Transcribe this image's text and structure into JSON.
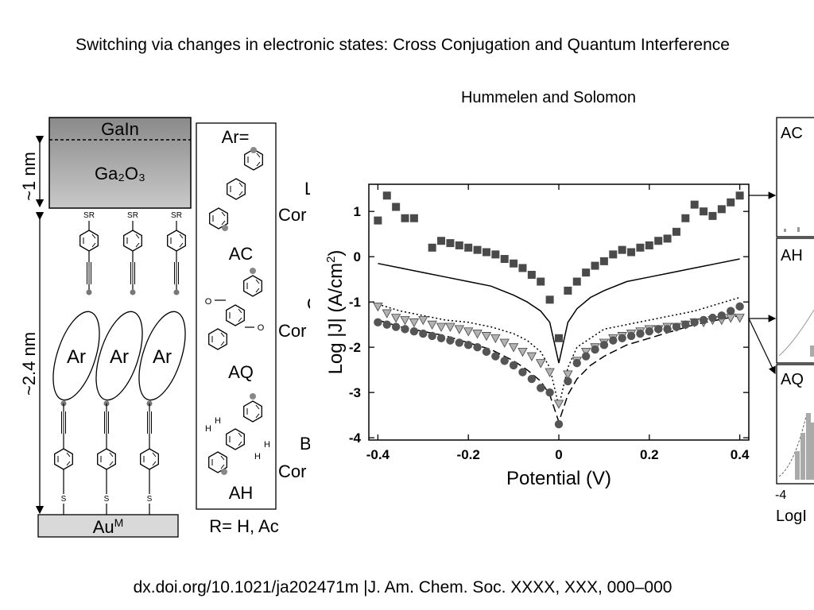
{
  "slide": {
    "title": "Switching via changes in electronic states: Cross Conjugation and Quantum Interference",
    "subtitle": "Hummelen and Solomon",
    "footer": "dx.doi.org/10.1021/ja202471m |J. Am. Chem. Soc. XXXX, XXX, 000–000"
  },
  "schematic": {
    "top_electrode": "GaIn",
    "oxide_layer": "Ga₂O₃",
    "oxide_thickness": "~1 nm",
    "sam_thickness": "~2.4 nm",
    "bottom_electrode": "Au",
    "bottom_electrode_sup": "M",
    "anchor_top": "SR",
    "anchor_bottom": "S",
    "aromatic_unit": "Ar",
    "legend_header": "Ar=",
    "molecules": [
      "AC",
      "AQ",
      "AH"
    ],
    "r_group": "R= H, Ac",
    "hydrogen": "H",
    "oxygen": "O",
    "cut_labels": [
      "L",
      "Cor",
      "C",
      "Cor",
      "B",
      "Cor"
    ]
  },
  "chart_data": {
    "type": "scatter",
    "xlabel": "Potential (V)",
    "ylabel_main": "Log |J| (A/cm",
    "ylabel_sup": "2",
    "ylabel_end": ")",
    "xlim": [
      -0.42,
      0.42
    ],
    "ylim": [
      -4.05,
      1.6
    ],
    "xticks": [
      -0.4,
      -0.2,
      0,
      0.2,
      0.4
    ],
    "xtick_labels": [
      "-0.4",
      "-0.2",
      "0",
      "0.2",
      "0.4"
    ],
    "yticks": [
      1,
      0,
      -1,
      -2,
      -3,
      -4
    ],
    "ytick_labels": [
      "1",
      "0",
      "-1",
      "-2",
      "-3",
      "-4"
    ],
    "grid": false,
    "series": [
      {
        "marker": "square",
        "color": "#4a4a4a",
        "x": [
          -0.4,
          -0.38,
          -0.36,
          -0.34,
          -0.32,
          -0.3,
          -0.28,
          -0.26,
          -0.24,
          -0.22,
          -0.2,
          -0.18,
          -0.16,
          -0.14,
          -0.12,
          -0.1,
          -0.08,
          -0.06,
          -0.04,
          -0.02,
          0,
          0.02,
          0.04,
          0.06,
          0.08,
          0.1,
          0.12,
          0.14,
          0.16,
          0.18,
          0.2,
          0.22,
          0.24,
          0.26,
          0.28,
          0.3,
          0.32,
          0.34,
          0.36,
          0.38,
          0.4
        ],
        "y": [
          0.8,
          1.35,
          1.1,
          0.85,
          0.85,
          null,
          0.2,
          0.35,
          0.3,
          0.25,
          0.2,
          0.15,
          0.1,
          0.05,
          -0.05,
          -0.15,
          -0.25,
          -0.4,
          -0.55,
          -0.95,
          -1.8,
          -0.75,
          -0.55,
          -0.35,
          -0.2,
          -0.1,
          0.05,
          0.15,
          0.1,
          0.2,
          0.25,
          0.35,
          0.4,
          0.55,
          0.85,
          1.15,
          1.0,
          0.9,
          1.05,
          1.2,
          1.35
        ]
      },
      {
        "marker": "triangle-down",
        "color": "#b3b3b3",
        "x": [
          -0.4,
          -0.38,
          -0.36,
          -0.34,
          -0.32,
          -0.3,
          -0.28,
          -0.26,
          -0.24,
          -0.22,
          -0.2,
          -0.18,
          -0.16,
          -0.14,
          -0.12,
          -0.1,
          -0.08,
          -0.06,
          -0.04,
          -0.02,
          0,
          0.02,
          0.04,
          0.06,
          0.08,
          0.1,
          0.12,
          0.14,
          0.16,
          0.18,
          0.2,
          0.22,
          0.24,
          0.26,
          0.28,
          0.3,
          0.32,
          0.34,
          0.36,
          0.38,
          0.4
        ],
        "y": [
          -1.1,
          -1.25,
          -1.35,
          -1.4,
          -1.45,
          -1.4,
          -1.5,
          -1.55,
          -1.55,
          -1.6,
          -1.65,
          -1.7,
          -1.75,
          -1.8,
          -1.9,
          -2.0,
          -2.1,
          -2.2,
          -2.35,
          -2.55,
          -3.25,
          -2.6,
          -2.3,
          -2.1,
          -2.0,
          -1.9,
          -1.8,
          -1.75,
          -1.7,
          -1.65,
          -1.6,
          -1.6,
          -1.55,
          -1.55,
          -1.5,
          -1.45,
          -1.45,
          -1.4,
          -1.4,
          -1.35,
          -1.35
        ]
      },
      {
        "marker": "circle",
        "color": "#555555",
        "x": [
          -0.4,
          -0.38,
          -0.36,
          -0.34,
          -0.32,
          -0.3,
          -0.28,
          -0.26,
          -0.24,
          -0.22,
          -0.2,
          -0.18,
          -0.16,
          -0.14,
          -0.12,
          -0.1,
          -0.08,
          -0.06,
          -0.04,
          -0.02,
          0,
          0.02,
          0.04,
          0.06,
          0.08,
          0.1,
          0.12,
          0.14,
          0.16,
          0.18,
          0.2,
          0.22,
          0.24,
          0.26,
          0.28,
          0.3,
          0.32,
          0.34,
          0.36,
          0.38,
          0.4
        ],
        "y": [
          -1.45,
          -1.5,
          -1.55,
          -1.6,
          -1.65,
          -1.7,
          -1.75,
          -1.8,
          -1.85,
          -1.9,
          -1.95,
          -2.0,
          -2.1,
          -2.2,
          -2.3,
          -2.4,
          -2.55,
          -2.7,
          -2.9,
          -3.0,
          -3.7,
          -2.75,
          -2.35,
          -2.2,
          -2.05,
          -1.95,
          -1.85,
          -1.8,
          -1.75,
          -1.7,
          -1.65,
          -1.6,
          -1.6,
          -1.55,
          -1.5,
          -1.45,
          -1.4,
          -1.35,
          -1.3,
          -1.2,
          -1.1
        ]
      }
    ],
    "curves": [
      {
        "style": "solid",
        "x": [
          -0.4,
          -0.35,
          -0.3,
          -0.25,
          -0.2,
          -0.15,
          -0.1,
          -0.07,
          -0.04,
          -0.02,
          0,
          0.02,
          0.04,
          0.07,
          0.1,
          0.15,
          0.2,
          0.25,
          0.3,
          0.35,
          0.4
        ],
        "y": [
          -0.15,
          -0.25,
          -0.35,
          -0.45,
          -0.55,
          -0.65,
          -0.85,
          -1.0,
          -1.2,
          -1.45,
          -2.35,
          -1.45,
          -1.15,
          -0.9,
          -0.75,
          -0.55,
          -0.45,
          -0.35,
          -0.25,
          -0.15,
          -0.05
        ]
      },
      {
        "style": "dotted",
        "x": [
          -0.4,
          -0.35,
          -0.3,
          -0.25,
          -0.2,
          -0.15,
          -0.1,
          -0.07,
          -0.04,
          -0.02,
          0,
          0.02,
          0.04,
          0.07,
          0.1,
          0.15,
          0.2,
          0.25,
          0.3,
          0.35,
          0.4
        ],
        "y": [
          -1.05,
          -1.2,
          -1.3,
          -1.4,
          -1.45,
          -1.55,
          -1.7,
          -1.85,
          -2.1,
          -2.45,
          -3.3,
          -2.45,
          -2.0,
          -1.8,
          -1.6,
          -1.5,
          -1.4,
          -1.3,
          -1.2,
          -1.05,
          -0.9
        ]
      },
      {
        "style": "dashed",
        "x": [
          -0.4,
          -0.35,
          -0.3,
          -0.25,
          -0.2,
          -0.15,
          -0.1,
          -0.07,
          -0.04,
          -0.02,
          0,
          0.02,
          0.04,
          0.07,
          0.1,
          0.15,
          0.2,
          0.25,
          0.3,
          0.35,
          0.4
        ],
        "y": [
          -1.4,
          -1.55,
          -1.65,
          -1.75,
          -1.9,
          -2.05,
          -2.3,
          -2.5,
          -2.75,
          -3.05,
          -3.65,
          -3.05,
          -2.7,
          -2.4,
          -2.2,
          -1.95,
          -1.8,
          -1.65,
          -1.5,
          -1.4,
          -1.3
        ]
      }
    ]
  },
  "side_panel": {
    "labels": [
      "AC",
      "AH",
      "AQ"
    ],
    "axis_tick": "-4",
    "axis_label": "LogI"
  }
}
